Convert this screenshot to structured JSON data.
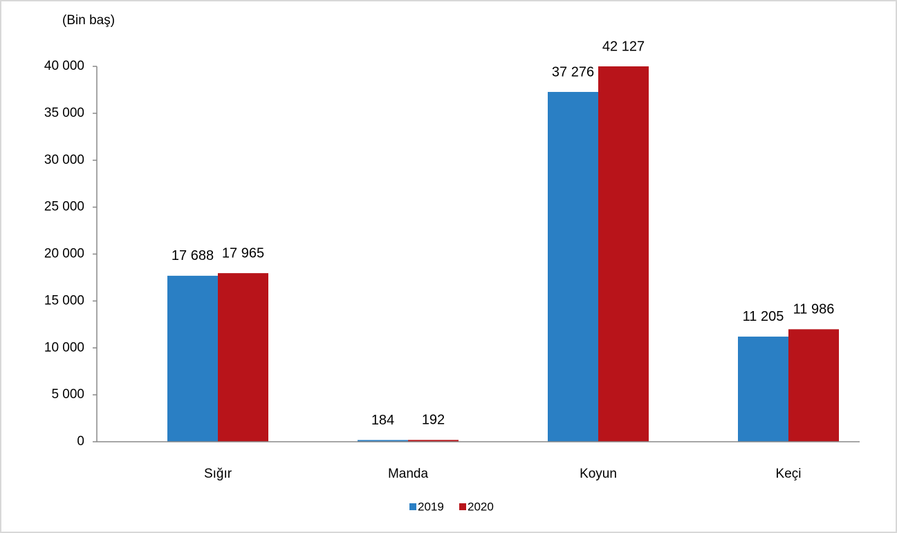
{
  "chart_data": {
    "type": "bar",
    "y_label": "(Bin baş)",
    "categories": [
      "Sığır",
      "Manda",
      "Koyun",
      "Keçi"
    ],
    "series": [
      {
        "name": "2019",
        "color": "#2a7fc4",
        "values": [
          17688,
          184,
          37276,
          11205
        ],
        "value_labels": [
          "17 688",
          "184",
          "37 276",
          "11 205"
        ]
      },
      {
        "name": "2020",
        "color": "#b8141a",
        "values": [
          17965,
          192,
          42127,
          11986
        ],
        "value_labels": [
          "17 965",
          "192",
          "42 127",
          "11 986"
        ]
      }
    ],
    "ylim": [
      0,
      40000
    ],
    "yticks": [
      0,
      {
        "value": 5000,
        "label": "5 000"
      },
      {
        "value": 10000,
        "label": "10 000"
      },
      {
        "value": 15000,
        "label": "15 000"
      },
      {
        "value": 20000,
        "label": "20 000"
      },
      {
        "value": 25000,
        "label": "25 000"
      },
      {
        "value": 30000,
        "label": "30 000"
      },
      {
        "value": 35000,
        "label": "35 000"
      },
      {
        "value": 40000,
        "label": "40 000"
      }
    ],
    "legend": "bottom"
  }
}
